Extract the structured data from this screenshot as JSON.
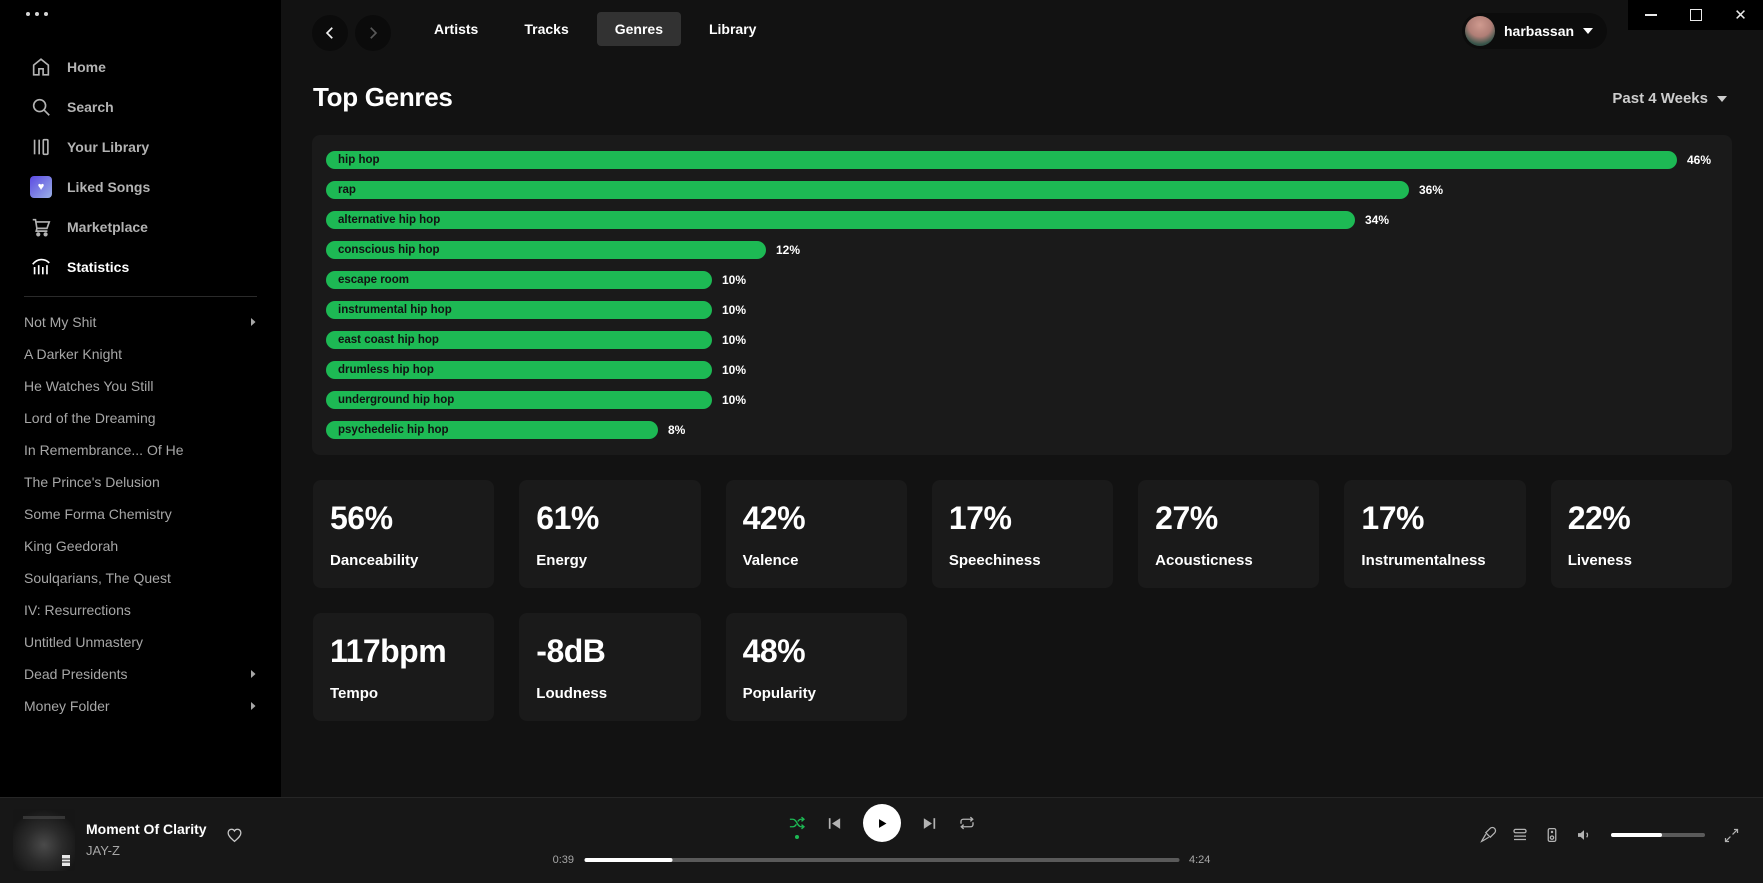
{
  "topbar": {
    "tabs": [
      {
        "label": "Artists",
        "active": false
      },
      {
        "label": "Tracks",
        "active": false
      },
      {
        "label": "Genres",
        "active": true
      },
      {
        "label": "Library",
        "active": false
      }
    ],
    "user": {
      "name": "harbassan"
    }
  },
  "sidebar": {
    "menu": [
      {
        "label": "Home",
        "active": false
      },
      {
        "label": "Search",
        "active": false
      },
      {
        "label": "Your Library",
        "active": false
      },
      {
        "label": "Liked Songs",
        "active": false
      },
      {
        "label": "Marketplace",
        "active": false
      },
      {
        "label": "Statistics",
        "active": true
      }
    ],
    "playlists": [
      {
        "label": "Not My Shit",
        "has_arrow": true
      },
      {
        "label": "A Darker Knight",
        "has_arrow": false
      },
      {
        "label": "He Watches You Still",
        "has_arrow": false
      },
      {
        "label": "Lord of the Dreaming",
        "has_arrow": false
      },
      {
        "label": "In Remembrance... Of He",
        "has_arrow": false
      },
      {
        "label": "The Prince's Delusion",
        "has_arrow": false
      },
      {
        "label": "Some Forma Chemistry",
        "has_arrow": false
      },
      {
        "label": "King Geedorah",
        "has_arrow": false
      },
      {
        "label": "Soulqarians, The Quest",
        "has_arrow": false
      },
      {
        "label": "IV: Resurrections",
        "has_arrow": false
      },
      {
        "label": "Untitled Unmastery",
        "has_arrow": false
      },
      {
        "label": "Dead Presidents",
        "has_arrow": true
      },
      {
        "label": "Money Folder",
        "has_arrow": true
      }
    ]
  },
  "page": {
    "title": "Top Genres",
    "time_range": "Past 4 Weeks"
  },
  "chart_data": {
    "type": "bar",
    "orientation": "horizontal",
    "title": "Top Genres",
    "categories": [
      "hip hop",
      "rap",
      "alternative hip hop",
      "conscious hip hop",
      "escape room",
      "instrumental hip hop",
      "east coast hip hop",
      "drumless hip hop",
      "underground hip hop",
      "psychedelic hip hop"
    ],
    "values": [
      46,
      36,
      34,
      12,
      10,
      10,
      10,
      10,
      10,
      8
    ],
    "unit": "%",
    "xlim": [
      0,
      46
    ],
    "bar_color": "#1db954",
    "legend": "none",
    "grid": false
  },
  "stats": [
    {
      "value": "56%",
      "label": "Danceability"
    },
    {
      "value": "61%",
      "label": "Energy"
    },
    {
      "value": "42%",
      "label": "Valence"
    },
    {
      "value": "17%",
      "label": "Speechiness"
    },
    {
      "value": "27%",
      "label": "Acousticness"
    },
    {
      "value": "17%",
      "label": "Instrumentalness"
    },
    {
      "value": "22%",
      "label": "Liveness"
    },
    {
      "value": "117bpm",
      "label": "Tempo"
    },
    {
      "value": "-8dB",
      "label": "Loudness"
    },
    {
      "value": "48%",
      "label": "Popularity"
    }
  ],
  "player": {
    "track": "Moment Of Clarity",
    "artist": "JAY-Z",
    "elapsed": "0:39",
    "duration": "4:24",
    "progress_pct": 14.8,
    "volume_pct": 54,
    "shuffle_on": true
  },
  "colors": {
    "accent": "#1db954",
    "page_bg": "#121212",
    "sidebar_bg": "#000000",
    "card_bg": "#1a1a1a"
  }
}
